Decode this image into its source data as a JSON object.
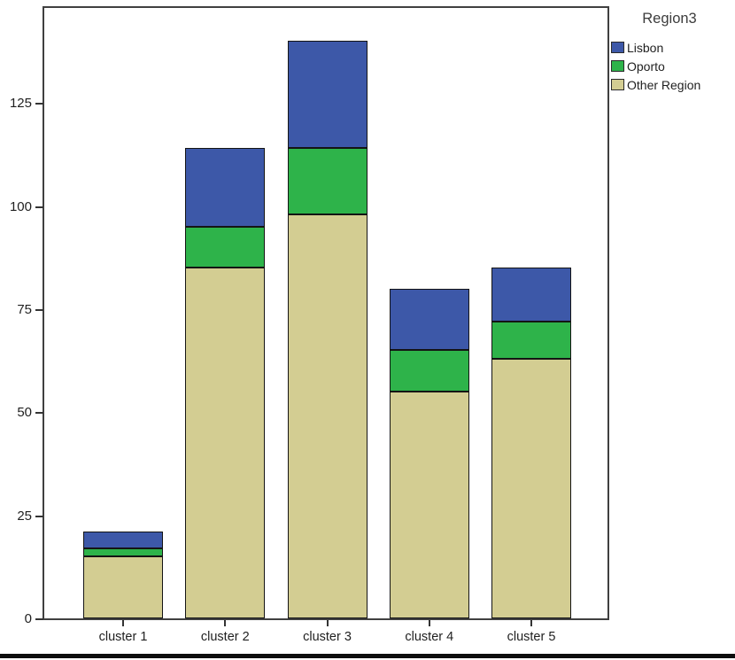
{
  "chart_data": {
    "type": "bar",
    "stacked": true,
    "title": "",
    "xlabel": "",
    "ylabel": "",
    "categories": [
      "cluster 1",
      "cluster 2",
      "cluster 3",
      "cluster 4",
      "cluster 5"
    ],
    "series": [
      {
        "name": "Other Region",
        "color": "#D3CD92",
        "values": [
          15,
          85,
          98,
          55,
          63
        ]
      },
      {
        "name": "Oporto",
        "color": "#2EB34A",
        "values": [
          2,
          10,
          16,
          10,
          9
        ]
      },
      {
        "name": "Lisbon",
        "color": "#3D58A8",
        "values": [
          4,
          19,
          26,
          15,
          13
        ]
      }
    ],
    "stack_order": "bottom-to-top",
    "stack_totals": [
      21,
      114,
      140,
      80,
      85
    ],
    "y_ticks": [
      0,
      25,
      50,
      75,
      100,
      125
    ],
    "ylim": [
      0,
      148
    ],
    "grid": false,
    "legend": {
      "title": "Region3",
      "position": "outside-top-right",
      "entries_top_to_bottom": [
        "Lisbon",
        "Oporto",
        "Other Region"
      ]
    },
    "bar_border_color": "#141414",
    "frame_color": "#404040",
    "text_color": "#1f1f1f"
  }
}
